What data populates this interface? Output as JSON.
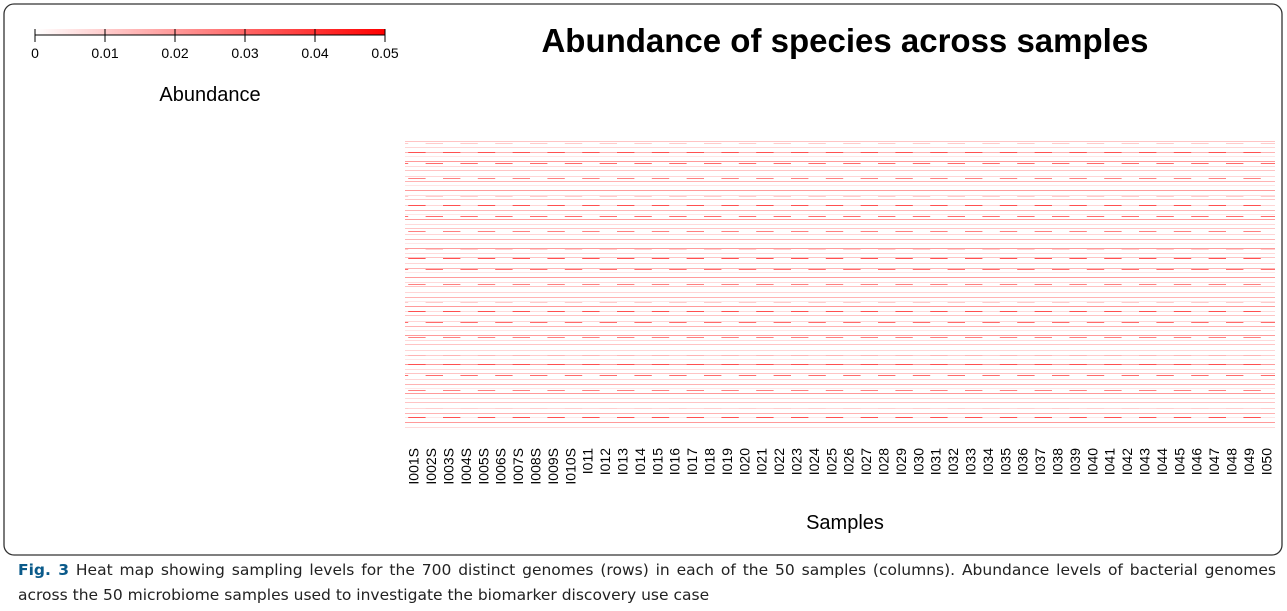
{
  "chart_data": {
    "type": "heatmap",
    "title": "Abundance of species across samples",
    "x_label": "Samples",
    "columns": [
      "I001S",
      "I002S",
      "I003S",
      "I004S",
      "I005S",
      "I006S",
      "I007S",
      "I008S",
      "I009S",
      "I010S",
      "I011",
      "I012",
      "I013",
      "I014",
      "I015",
      "I016",
      "I017",
      "I018",
      "I019",
      "I020",
      "I021",
      "I022",
      "I023",
      "I024",
      "I025",
      "I026",
      "I027",
      "I028",
      "I029",
      "I030",
      "I031",
      "I032",
      "I033",
      "I034",
      "I035",
      "I036",
      "I037",
      "I038",
      "I039",
      "I040",
      "I041",
      "I042",
      "I043",
      "I044",
      "I045",
      "I046",
      "I047",
      "I048",
      "I049",
      "I050"
    ],
    "colorbar": {
      "label": "Abundance",
      "lim": [
        0,
        0.05
      ],
      "ticks": [
        0,
        0.01,
        0.02,
        0.03,
        0.04,
        0.05
      ],
      "colors": [
        "#ffffff",
        "#ff0000"
      ]
    }
  },
  "caption": {
    "label": "Fig. 3",
    "text": "Heat map showing sampling levels for the 700 distinct genomes (rows) in each of the 50 samples (columns). Abundance levels of bacterial genomes across the 50 microbiome samples used to investigate the biomarker discovery use case"
  }
}
